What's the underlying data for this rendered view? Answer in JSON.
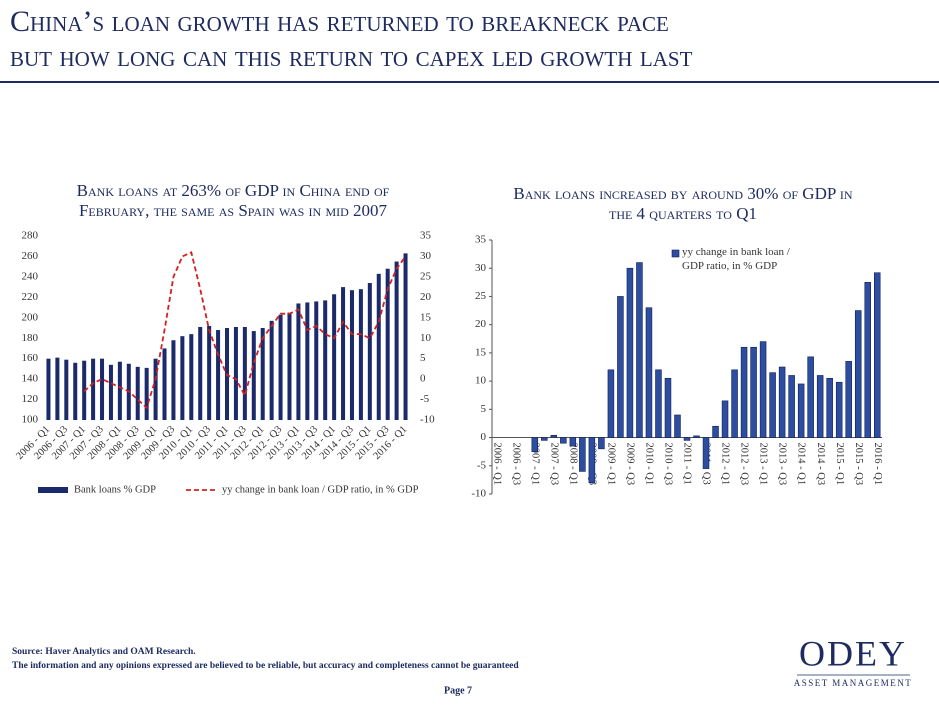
{
  "header": {
    "title": [
      "China’s loan growth has returned to breakneck pace",
      "but how long can this return to capex led growth last"
    ]
  },
  "chart_data": [
    {
      "type": "bar",
      "title": [
        "Bank loans at 263% of GDP in China end of",
        "February, the same as Spain was in mid 2007"
      ],
      "categories": [
        "2006 - Q1",
        null,
        "2006 - Q3",
        null,
        "2007 - Q1",
        null,
        "2007 - Q3",
        null,
        "2008 - Q1",
        null,
        "2008 - Q3",
        null,
        "2009 - Q1",
        null,
        "2009 - Q3",
        null,
        "2010 - Q1",
        null,
        "2010 - Q3",
        null,
        "2011 - Q1",
        null,
        "2011 - Q3",
        null,
        "2012 - Q1",
        null,
        "2012 - Q3",
        null,
        "2013 - Q1",
        null,
        "2013 - Q3",
        null,
        "2014 - Q1",
        null,
        "2014 - Q3",
        null,
        "2015 - Q1",
        null,
        "2015 - Q3",
        null,
        "2016 - Q1"
      ],
      "series": [
        {
          "name": "Bank loans % GDP",
          "type": "bar",
          "color": "#1b2a6b",
          "values": [
            160,
            161,
            159,
            156,
            158,
            160,
            160,
            154,
            157,
            155,
            152,
            151,
            160,
            170,
            178,
            182,
            184,
            191,
            192,
            188,
            190,
            191,
            191,
            187,
            190,
            197,
            203,
            205,
            214,
            215,
            216,
            217,
            223,
            230,
            227,
            228,
            234,
            243,
            248,
            255,
            263
          ]
        },
        {
          "name": "yy change in bank loan / GDP ratio, in % GDP",
          "type": "line",
          "axis": "y2",
          "dashed": true,
          "color": "#d42020",
          "values": [
            null,
            null,
            null,
            null,
            -3,
            -1,
            0,
            -1,
            -2,
            -3,
            -5,
            -7,
            0,
            12,
            25,
            30,
            31,
            22,
            12,
            6,
            1,
            0,
            -4,
            4,
            10,
            13,
            16,
            16,
            17,
            12,
            13,
            11,
            10,
            14,
            11,
            11,
            10,
            14,
            22,
            27,
            30
          ]
        }
      ],
      "ylim": [
        100,
        280
      ],
      "yticks": [
        100,
        120,
        140,
        160,
        180,
        200,
        220,
        240,
        260,
        280
      ],
      "y2lim": [
        -10,
        35
      ],
      "y2ticks": [
        -10,
        -5,
        0,
        5,
        10,
        15,
        20,
        25,
        30,
        35
      ],
      "legend": "bottom"
    },
    {
      "type": "bar",
      "title": [
        "Bank loans increased by around 30% of GDP in",
        "the 4 quarters to Q1"
      ],
      "categories": [
        "2006 - Q1",
        null,
        "2006 - Q3",
        null,
        "2007 - Q1",
        null,
        "2007 - Q3",
        null,
        "2008 - Q1",
        null,
        "2008 - Q3",
        null,
        "2009 - Q1",
        null,
        "2009 - Q3",
        null,
        "2010 - Q1",
        null,
        "2010 - Q3",
        null,
        "2011 - Q1",
        null,
        "2011 - Q3",
        null,
        "2012 - Q1",
        null,
        "2012 - Q3",
        null,
        "2013 - Q1",
        null,
        "2013 - Q3",
        null,
        "2014 - Q1",
        null,
        "2014 - Q3",
        null,
        "2015 - Q1",
        null,
        "2015 - Q3",
        null,
        "2016 - Q1"
      ],
      "series": [
        {
          "name": "yy change in bank loan / GDP ratio, in % GDP",
          "type": "bar",
          "color": "#2d4d9f",
          "values": [
            0,
            0,
            0,
            0,
            -2.5,
            -0.5,
            0.4,
            -1,
            -1.5,
            -6,
            -8,
            -2,
            12,
            25,
            30,
            31,
            23,
            12,
            10.5,
            4,
            -0.5,
            0.3,
            -5.5,
            2,
            6.5,
            12,
            16,
            16,
            17,
            11.5,
            12.5,
            11,
            9.5,
            14.3,
            11,
            10.5,
            9.8,
            13.5,
            22.5,
            27.5,
            29.2
          ]
        }
      ],
      "ylim": [
        -10,
        35
      ],
      "yticks": [
        -10,
        -5,
        0,
        5,
        10,
        15,
        20,
        25,
        30,
        35
      ],
      "zero_line": true,
      "legend": "upper center"
    }
  ],
  "footer": {
    "source": "Source: Haver Analytics and OAM Research.",
    "disclaimer": "The information and any opinions expressed are believed to be reliable, but accuracy and completeness cannot be guaranteed",
    "page": "Page 7",
    "logo": "ODEY",
    "logo_sub": "ASSET MANAGEMENT"
  }
}
